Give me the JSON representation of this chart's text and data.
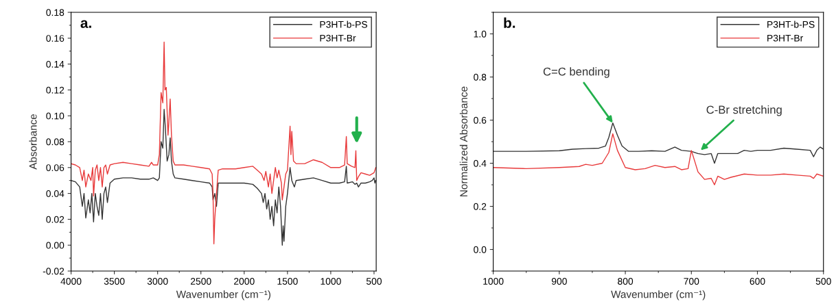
{
  "chart_data": [
    {
      "type": "line",
      "annotations": [
        "a."
      ],
      "xlabel": "Wavenumber (cm⁻¹)",
      "ylabel": "Absorbance",
      "legend": "top right",
      "grid": false,
      "xlim": [
        4000,
        475
      ],
      "ylim": [
        -0.02,
        0.18
      ],
      "xticks": [
        4000,
        3500,
        3000,
        2500,
        2000,
        1500,
        1000,
        500
      ],
      "yticks": [
        {
          "value": -0.02,
          "label": "-0.02"
        },
        {
          "value": 0,
          "label": "0.00"
        },
        {
          "value": 0.02,
          "label": "0.02"
        },
        {
          "value": 0.04,
          "label": "0.04"
        },
        {
          "value": 0.06,
          "label": "0.06"
        },
        {
          "value": 0.08,
          "label": "0.08"
        },
        {
          "value": 0.1,
          "label": "0.10"
        },
        {
          "value": 0.12,
          "label": "0.12"
        },
        {
          "value": 0.14,
          "label": "0.14"
        },
        {
          "value": 0.16,
          "label": "0.16"
        },
        {
          "value": 0.18,
          "label": "0.18"
        }
      ],
      "series": [
        {
          "name": "P3HT-b-PS",
          "color": "#333333",
          "x": [
            4000,
            3950,
            3900,
            3870,
            3850,
            3830,
            3800,
            3780,
            3760,
            3740,
            3720,
            3700,
            3680,
            3660,
            3640,
            3620,
            3600,
            3580,
            3550,
            3500,
            3400,
            3300,
            3200,
            3100,
            3050,
            3000,
            2980,
            2960,
            2940,
            2925,
            2910,
            2890,
            2870,
            2855,
            2840,
            2820,
            2800,
            2700,
            2600,
            2500,
            2400,
            2370,
            2360,
            2340,
            2320,
            2300,
            2200,
            2100,
            2000,
            1900,
            1850,
            1800,
            1780,
            1760,
            1740,
            1720,
            1700,
            1680,
            1660,
            1640,
            1620,
            1600,
            1580,
            1560,
            1550,
            1540,
            1520,
            1500,
            1470,
            1450,
            1420,
            1400,
            1300,
            1200,
            1100,
            1000,
            900,
            840,
            820,
            810,
            750,
            720,
            700,
            680,
            650,
            600,
            550,
            520,
            500,
            490,
            480
          ],
          "values": [
            0.05,
            0.049,
            0.045,
            0.03,
            0.04,
            0.021,
            0.035,
            0.025,
            0.04,
            0.018,
            0.04,
            0.03,
            0.023,
            0.04,
            0.02,
            0.04,
            0.045,
            0.033,
            0.048,
            0.051,
            0.052,
            0.052,
            0.051,
            0.051,
            0.052,
            0.05,
            0.052,
            0.08,
            0.075,
            0.105,
            0.09,
            0.065,
            0.07,
            0.083,
            0.065,
            0.055,
            0.052,
            0.051,
            0.05,
            0.049,
            0.048,
            0.045,
            0.035,
            0.04,
            0.03,
            0.048,
            0.048,
            0.048,
            0.048,
            0.047,
            0.044,
            0.04,
            0.033,
            0.04,
            0.028,
            0.035,
            0.02,
            0.03,
            0.015,
            0.035,
            0.025,
            0.045,
            0.03,
            0.0,
            0.015,
            0.003,
            0.03,
            0.04,
            0.06,
            0.05,
            0.045,
            0.05,
            0.051,
            0.052,
            0.05,
            0.048,
            0.048,
            0.049,
            0.061,
            0.048,
            0.049,
            0.047,
            0.048,
            0.045,
            0.048,
            0.048,
            0.049,
            0.05,
            0.052,
            0.048,
            0.05
          ]
        },
        {
          "name": "P3HT-Br",
          "color": "#e8393a",
          "x": [
            4000,
            3950,
            3900,
            3870,
            3850,
            3830,
            3800,
            3770,
            3750,
            3740,
            3720,
            3700,
            3680,
            3660,
            3640,
            3620,
            3600,
            3580,
            3550,
            3500,
            3400,
            3300,
            3200,
            3100,
            3070,
            3050,
            3000,
            2980,
            2960,
            2940,
            2925,
            2915,
            2900,
            2880,
            2870,
            2855,
            2840,
            2820,
            2800,
            2700,
            2600,
            2500,
            2400,
            2370,
            2360,
            2350,
            2340,
            2320,
            2300,
            2250,
            2100,
            2000,
            1900,
            1850,
            1800,
            1770,
            1750,
            1720,
            1700,
            1680,
            1660,
            1640,
            1620,
            1600,
            1570,
            1560,
            1540,
            1520,
            1500,
            1470,
            1460,
            1450,
            1430,
            1400,
            1300,
            1200,
            1100,
            1000,
            900,
            840,
            820,
            810,
            760,
            720,
            710,
            700,
            680,
            650,
            600,
            550,
            500,
            480
          ],
          "values": [
            0.063,
            0.062,
            0.06,
            0.05,
            0.058,
            0.045,
            0.055,
            0.05,
            0.06,
            0.038,
            0.058,
            0.062,
            0.05,
            0.06,
            0.045,
            0.06,
            0.062,
            0.055,
            0.062,
            0.063,
            0.064,
            0.063,
            0.062,
            0.061,
            0.064,
            0.062,
            0.062,
            0.07,
            0.118,
            0.11,
            0.157,
            0.12,
            0.122,
            0.085,
            0.095,
            0.113,
            0.085,
            0.065,
            0.062,
            0.062,
            0.061,
            0.06,
            0.059,
            0.055,
            0.04,
            0.001,
            0.02,
            0.04,
            0.058,
            0.059,
            0.059,
            0.06,
            0.061,
            0.058,
            0.055,
            0.05,
            0.057,
            0.045,
            0.055,
            0.04,
            0.05,
            0.06,
            0.052,
            0.058,
            0.048,
            0.035,
            0.045,
            0.055,
            0.058,
            0.092,
            0.07,
            0.088,
            0.065,
            0.063,
            0.063,
            0.066,
            0.064,
            0.06,
            0.06,
            0.062,
            0.084,
            0.063,
            0.061,
            0.06,
            0.073,
            0.05,
            0.053,
            0.056,
            0.055,
            0.054,
            0.056,
            0.06
          ]
        }
      ]
    },
    {
      "type": "line",
      "annotations": [
        "b.",
        {
          "text": "C=C bending",
          "x": 819,
          "y": 0.587
        },
        {
          "text": "C-Br stretching",
          "x": 686,
          "y": 0.46
        }
      ],
      "xlabel": "Wavenumber (cm⁻¹)",
      "ylabel": "Normalized Absorbance",
      "legend": "top right",
      "grid": false,
      "xlim": [
        1000,
        500
      ],
      "ylim": [
        -0.1,
        1.1
      ],
      "xticks": [
        1000,
        900,
        800,
        700,
        600,
        500
      ],
      "yticks": [
        {
          "value": 0,
          "label": "0.0"
        },
        {
          "value": 0.2,
          "label": "0.2"
        },
        {
          "value": 0.4,
          "label": "0.4"
        },
        {
          "value": 0.6,
          "label": "0.6"
        },
        {
          "value": 0.8,
          "label": "0.8"
        },
        {
          "value": 1.0,
          "label": "1.0"
        }
      ],
      "series": [
        {
          "name": "P3HT-b-PS",
          "color": "#333333",
          "x": [
            1000,
            950,
            900,
            880,
            860,
            840,
            830,
            825,
            819,
            812,
            805,
            795,
            780,
            760,
            740,
            725,
            715,
            700,
            690,
            680,
            670,
            665,
            660,
            650,
            630,
            620,
            610,
            600,
            580,
            560,
            540,
            520,
            515,
            510,
            505,
            500
          ],
          "values": [
            0.455,
            0.455,
            0.458,
            0.465,
            0.468,
            0.47,
            0.48,
            0.52,
            0.587,
            0.53,
            0.48,
            0.455,
            0.455,
            0.458,
            0.455,
            0.475,
            0.46,
            0.455,
            0.445,
            0.44,
            0.445,
            0.4,
            0.445,
            0.445,
            0.445,
            0.46,
            0.455,
            0.46,
            0.46,
            0.47,
            0.465,
            0.46,
            0.43,
            0.46,
            0.475,
            0.465
          ]
        },
        {
          "name": "P3HT-Br",
          "color": "#e8393a",
          "x": [
            1000,
            950,
            900,
            870,
            860,
            850,
            835,
            825,
            819,
            812,
            800,
            785,
            770,
            755,
            740,
            725,
            715,
            705,
            700,
            695,
            690,
            680,
            670,
            665,
            660,
            650,
            640,
            620,
            600,
            580,
            560,
            540,
            520,
            515,
            510,
            500
          ],
          "values": [
            0.38,
            0.375,
            0.38,
            0.385,
            0.395,
            0.39,
            0.4,
            0.45,
            0.537,
            0.46,
            0.38,
            0.37,
            0.375,
            0.39,
            0.38,
            0.385,
            0.37,
            0.375,
            0.459,
            0.41,
            0.36,
            0.325,
            0.33,
            0.3,
            0.34,
            0.325,
            0.335,
            0.35,
            0.345,
            0.345,
            0.35,
            0.345,
            0.34,
            0.33,
            0.35,
            0.34
          ]
        }
      ]
    }
  ]
}
